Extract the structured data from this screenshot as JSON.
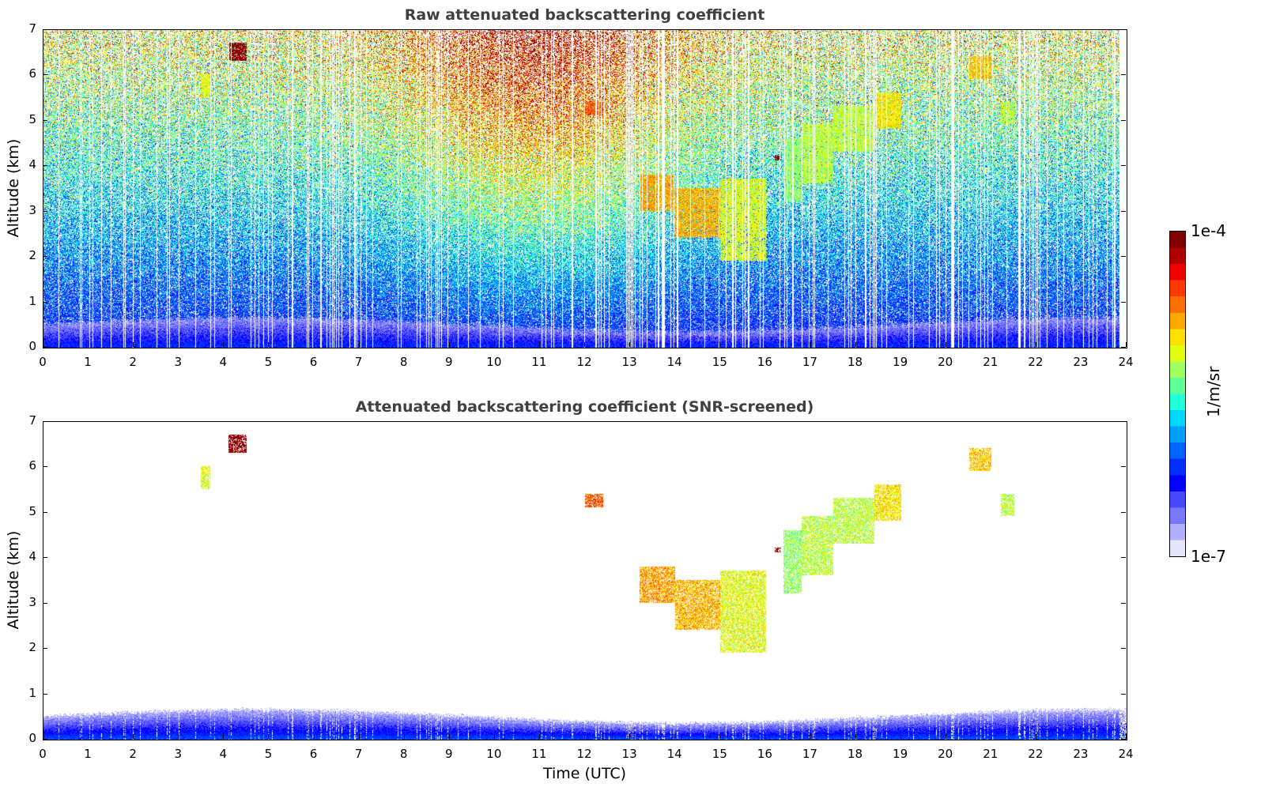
{
  "chart_data": [
    {
      "type": "heatmap",
      "title": "Raw attenuated backscattering coefficient",
      "xlabel": "",
      "ylabel": "Altitude (km)",
      "xlim": [
        0,
        24
      ],
      "ylim": [
        0,
        7
      ],
      "xticks": [
        "0",
        "1",
        "2",
        "3",
        "4",
        "5",
        "6",
        "7",
        "8",
        "9",
        "10",
        "11",
        "12",
        "13",
        "14",
        "15",
        "16",
        "17",
        "18",
        "19",
        "20",
        "21",
        "22",
        "23",
        "24"
      ],
      "yticks": [
        "0",
        "1",
        "2",
        "3",
        "4",
        "5",
        "6",
        "7"
      ],
      "screened": false,
      "features": [
        {
          "name": "boundary-layer",
          "t": [
            0,
            24
          ],
          "alt": [
            0,
            0.6
          ],
          "log10": -6.4
        },
        {
          "name": "cloud",
          "t": [
            3.5,
            3.7
          ],
          "alt": [
            5.5,
            6.0
          ],
          "log10": -5.1
        },
        {
          "name": "cloud",
          "t": [
            4.1,
            4.5
          ],
          "alt": [
            6.3,
            6.7
          ],
          "log10": -4.05
        },
        {
          "name": "cloud",
          "t": [
            12.0,
            12.4
          ],
          "alt": [
            5.1,
            5.4
          ],
          "log10": -4.6
        },
        {
          "name": "cloud",
          "t": [
            13.2,
            14.0
          ],
          "alt": [
            3.0,
            3.8
          ],
          "log10": -4.8
        },
        {
          "name": "cloud",
          "t": [
            14.0,
            15.0
          ],
          "alt": [
            2.4,
            3.5
          ],
          "log10": -4.85
        },
        {
          "name": "cloud",
          "t": [
            15.0,
            16.0
          ],
          "alt": [
            1.9,
            3.7
          ],
          "log10": -5.1
        },
        {
          "name": "cloud",
          "t": [
            16.2,
            16.35
          ],
          "alt": [
            4.1,
            4.22
          ],
          "log10": -4.0
        },
        {
          "name": "cloud",
          "t": [
            16.4,
            16.8
          ],
          "alt": [
            3.2,
            4.6
          ],
          "log10": -5.3
        },
        {
          "name": "cloud",
          "t": [
            16.8,
            17.5
          ],
          "alt": [
            3.6,
            4.9
          ],
          "log10": -5.2
        },
        {
          "name": "cloud",
          "t": [
            17.5,
            18.4
          ],
          "alt": [
            4.3,
            5.3
          ],
          "log10": -5.2
        },
        {
          "name": "cloud",
          "t": [
            18.4,
            19.0
          ],
          "alt": [
            4.8,
            5.6
          ],
          "log10": -5.0
        },
        {
          "name": "cloud",
          "t": [
            20.5,
            21.0
          ],
          "alt": [
            5.9,
            6.4
          ],
          "log10": -4.9
        },
        {
          "name": "cloud",
          "t": [
            21.2,
            21.5
          ],
          "alt": [
            4.9,
            5.4
          ],
          "log10": -5.2
        }
      ]
    },
    {
      "type": "heatmap",
      "title": "Attenuated backscattering coefficient (SNR-screened)",
      "xlabel": "Time (UTC)",
      "ylabel": "Altitude (km)",
      "xlim": [
        0,
        24
      ],
      "ylim": [
        0,
        7
      ],
      "xticks": [
        "0",
        "1",
        "2",
        "3",
        "4",
        "5",
        "6",
        "7",
        "8",
        "9",
        "10",
        "11",
        "12",
        "13",
        "14",
        "15",
        "16",
        "17",
        "18",
        "19",
        "20",
        "21",
        "22",
        "23",
        "24"
      ],
      "yticks": [
        "0",
        "1",
        "2",
        "3",
        "4",
        "5",
        "6",
        "7"
      ],
      "screened": true,
      "features": "same-as-raw"
    }
  ],
  "colorbar": {
    "label": "1/m/sr",
    "max_label": "1e-4",
    "min_label": "1e-7",
    "range_log10": [
      -7,
      -4
    ],
    "colors": [
      "#e6e6fa",
      "#b0b0ff",
      "#7878ff",
      "#4848ff",
      "#0000ff",
      "#0030ff",
      "#0064ff",
      "#00a0ff",
      "#00d8ff",
      "#20ffd8",
      "#60ff98",
      "#a0ff60",
      "#e0ff10",
      "#ffe000",
      "#ffa800",
      "#ff7000",
      "#ff3800",
      "#f00000",
      "#b00000",
      "#800000"
    ]
  }
}
